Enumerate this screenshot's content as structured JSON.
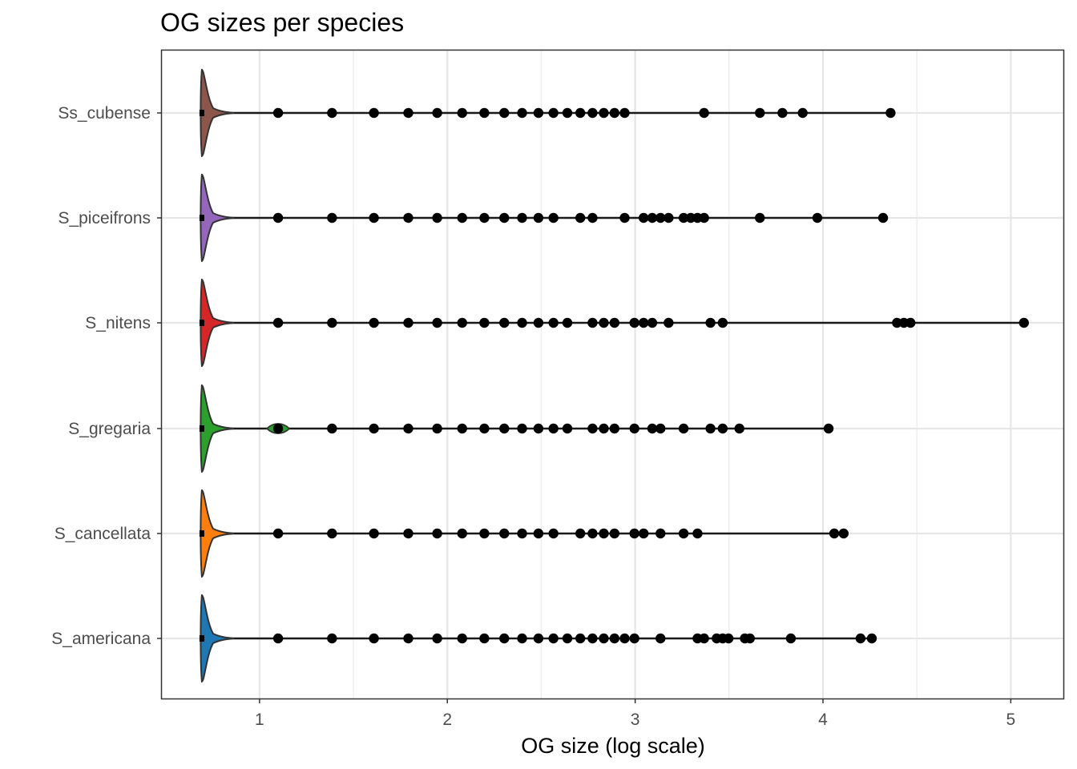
{
  "chart_data": {
    "type": "violin",
    "title": "OG sizes per species",
    "xlabel": "OG size (log scale)",
    "ylabel": "",
    "xlim": [
      0.48,
      5.28
    ],
    "x_ticks": [
      1,
      2,
      3,
      4,
      5
    ],
    "x_tick_labels": [
      "1",
      "2",
      "3",
      "4",
      "5"
    ],
    "x_minor_ticks": [
      1.5,
      2.5,
      3.5,
      4.5
    ],
    "grid": true,
    "legend": "none",
    "baseline": 0.693,
    "categories": [
      "S_americana",
      "S_cancellata",
      "S_gregaria",
      "S_nitens",
      "S_piceifrons",
      "Ss_cubense"
    ],
    "series": [
      {
        "category": "Ss_cubense",
        "color": "#8C564B",
        "max": 4.36,
        "points": [
          0.693,
          1.099,
          1.386,
          1.609,
          1.792,
          1.946,
          2.079,
          2.197,
          2.303,
          2.398,
          2.485,
          2.565,
          2.639,
          2.708,
          2.773,
          2.833,
          2.89,
          2.944,
          3.367,
          3.664,
          3.784,
          3.892,
          4.36
        ]
      },
      {
        "category": "S_piceifrons",
        "color": "#9467BD",
        "max": 4.32,
        "points": [
          0.693,
          1.099,
          1.386,
          1.609,
          1.792,
          1.946,
          2.079,
          2.197,
          2.303,
          2.398,
          2.485,
          2.565,
          2.708,
          2.773,
          2.944,
          3.045,
          3.091,
          3.135,
          3.178,
          3.258,
          3.296,
          3.332,
          3.367,
          3.664,
          3.97,
          4.32
        ]
      },
      {
        "category": "S_nitens",
        "color": "#D62728",
        "max": 5.07,
        "points": [
          0.693,
          1.099,
          1.386,
          1.609,
          1.792,
          1.946,
          2.079,
          2.197,
          2.303,
          2.398,
          2.485,
          2.565,
          2.639,
          2.773,
          2.833,
          2.89,
          2.996,
          3.045,
          3.091,
          3.178,
          3.401,
          3.466,
          4.394,
          4.431,
          4.466,
          5.07
        ]
      },
      {
        "category": "S_gregaria",
        "color": "#2CA02C",
        "max": 4.03,
        "points": [
          0.693,
          1.099,
          1.386,
          1.609,
          1.792,
          1.946,
          2.079,
          2.197,
          2.303,
          2.398,
          2.485,
          2.565,
          2.639,
          2.773,
          2.833,
          2.89,
          2.996,
          3.091,
          3.135,
          3.258,
          3.401,
          3.466,
          3.555,
          4.03
        ]
      },
      {
        "category": "S_cancellata",
        "color": "#FF7F0E",
        "max": 4.11,
        "points": [
          0.693,
          1.099,
          1.386,
          1.609,
          1.792,
          1.946,
          2.079,
          2.197,
          2.303,
          2.398,
          2.485,
          2.565,
          2.708,
          2.773,
          2.833,
          2.89,
          2.996,
          3.045,
          3.135,
          3.258,
          3.332,
          4.06,
          4.11
        ]
      },
      {
        "category": "S_americana",
        "color": "#1F77B4",
        "max": 4.26,
        "points": [
          0.693,
          1.099,
          1.386,
          1.609,
          1.792,
          1.946,
          2.079,
          2.197,
          2.303,
          2.398,
          2.485,
          2.565,
          2.639,
          2.708,
          2.773,
          2.833,
          2.89,
          2.944,
          2.996,
          3.135,
          3.332,
          3.367,
          3.434,
          3.466,
          3.497,
          3.584,
          3.611,
          3.829,
          4.2,
          4.26
        ]
      }
    ]
  }
}
